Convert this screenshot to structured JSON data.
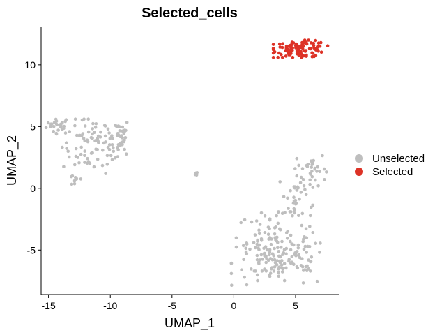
{
  "chart_data": {
    "type": "scatter",
    "title": "Selected_cells",
    "xlabel": "UMAP_1",
    "ylabel": "UMAP_2",
    "xlim": [
      -15.6,
      8.5
    ],
    "ylim": [
      -8.6,
      13.1
    ],
    "x_ticks": [
      -15,
      -10,
      -5,
      0,
      5
    ],
    "x_tick_labels": [
      "-15",
      "-10",
      "-5",
      "0",
      "5"
    ],
    "y_ticks": [
      -5,
      0,
      5,
      10
    ],
    "y_tick_labels": [
      "-5",
      "0",
      "5",
      "10"
    ],
    "grid": false,
    "legend_position": "right",
    "series": [
      {
        "name": "Unselected",
        "color": "#bebebe",
        "clusters": [
          {
            "center": [
              -14.2,
              5.1
            ],
            "spread": [
              0.5,
              0.35
            ],
            "n": 25
          },
          {
            "center": [
              -11.3,
              3.4
            ],
            "spread": [
              1.3,
              1.1
            ],
            "n": 90
          },
          {
            "center": [
              -9.4,
              4.3
            ],
            "spread": [
              0.5,
              0.7
            ],
            "n": 30
          },
          {
            "center": [
              -12.8,
              0.7
            ],
            "spread": [
              0.35,
              0.3
            ],
            "n": 10
          },
          {
            "center": [
              -3.0,
              1.2
            ],
            "spread": [
              0.08,
              0.1
            ],
            "n": 4
          },
          {
            "center": [
              6.3,
              1.6
            ],
            "spread": [
              0.6,
              0.7
            ],
            "n": 30
          },
          {
            "center": [
              5.0,
              -1.0
            ],
            "spread": [
              0.7,
              1.3
            ],
            "n": 40
          },
          {
            "center": [
              3.2,
              -4.3
            ],
            "spread": [
              1.5,
              1.2
            ],
            "n": 90
          },
          {
            "center": [
              3.8,
              -6.0
            ],
            "spread": [
              2.0,
              1.0
            ],
            "n": 100
          }
        ]
      },
      {
        "name": "Selected",
        "color": "#dd3226",
        "clusters": [
          {
            "center": [
              5.4,
              11.3
            ],
            "spread": [
              1.1,
              0.35
            ],
            "n": 110
          }
        ]
      }
    ],
    "legend": [
      {
        "label": "Unselected",
        "color": "#bebebe"
      },
      {
        "label": "Selected",
        "color": "#dd3226"
      }
    ]
  }
}
